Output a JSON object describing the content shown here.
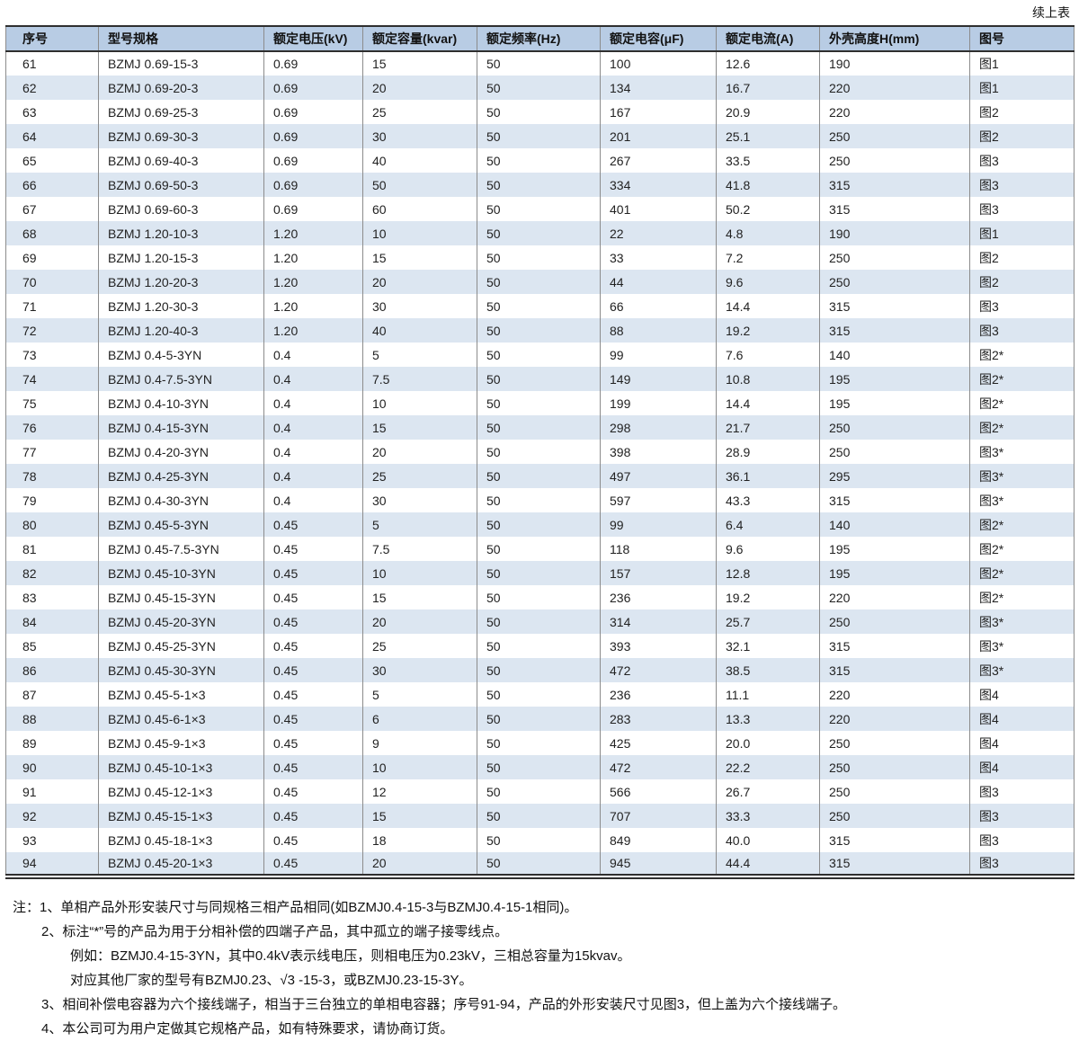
{
  "page": {
    "continuation_label": "续上表"
  },
  "colors": {
    "header_bg": "#b8cce4",
    "stripe_bg": "#dce6f1",
    "rule_dark": "#2f2f2f",
    "rule_gray": "#8c8c8c"
  },
  "table": {
    "columns": [
      "序号",
      "型号规格",
      "额定电压(kV)",
      "额定容量(kvar)",
      "额定频率(Hz)",
      "额定电容(μF)",
      "额定电流(A)",
      "外壳高度H(mm)",
      "图号"
    ],
    "rows": [
      [
        "61",
        "BZMJ 0.69-15-3",
        "0.69",
        "15",
        "50",
        "100",
        "12.6",
        "190",
        "图1"
      ],
      [
        "62",
        "BZMJ 0.69-20-3",
        "0.69",
        "20",
        "50",
        "134",
        "16.7",
        "220",
        "图1"
      ],
      [
        "63",
        "BZMJ 0.69-25-3",
        "0.69",
        "25",
        "50",
        "167",
        "20.9",
        "220",
        "图2"
      ],
      [
        "64",
        "BZMJ 0.69-30-3",
        "0.69",
        "30",
        "50",
        "201",
        "25.1",
        "250",
        "图2"
      ],
      [
        "65",
        "BZMJ 0.69-40-3",
        "0.69",
        "40",
        "50",
        "267",
        "33.5",
        "250",
        "图3"
      ],
      [
        "66",
        "BZMJ 0.69-50-3",
        "0.69",
        "50",
        "50",
        "334",
        "41.8",
        "315",
        "图3"
      ],
      [
        "67",
        "BZMJ 0.69-60-3",
        "0.69",
        "60",
        "50",
        "401",
        "50.2",
        "315",
        "图3"
      ],
      [
        "68",
        "BZMJ 1.20-10-3",
        "1.20",
        "10",
        "50",
        "22",
        "4.8",
        "190",
        "图1"
      ],
      [
        "69",
        "BZMJ 1.20-15-3",
        "1.20",
        "15",
        "50",
        "33",
        "7.2",
        "250",
        "图2"
      ],
      [
        "70",
        "BZMJ 1.20-20-3",
        "1.20",
        "20",
        "50",
        "44",
        "9.6",
        "250",
        "图2"
      ],
      [
        "71",
        "BZMJ 1.20-30-3",
        "1.20",
        "30",
        "50",
        "66",
        "14.4",
        "315",
        "图3"
      ],
      [
        "72",
        "BZMJ 1.20-40-3",
        "1.20",
        "40",
        "50",
        "88",
        "19.2",
        "315",
        "图3"
      ],
      [
        "73",
        "BZMJ 0.4-5-3YN",
        "0.4",
        "5",
        "50",
        "99",
        "7.6",
        "140",
        "图2*"
      ],
      [
        "74",
        "BZMJ 0.4-7.5-3YN",
        "0.4",
        "7.5",
        "50",
        "149",
        "10.8",
        "195",
        "图2*"
      ],
      [
        "75",
        "BZMJ 0.4-10-3YN",
        "0.4",
        "10",
        "50",
        "199",
        "14.4",
        "195",
        "图2*"
      ],
      [
        "76",
        "BZMJ 0.4-15-3YN",
        "0.4",
        "15",
        "50",
        "298",
        "21.7",
        "250",
        "图2*"
      ],
      [
        "77",
        "BZMJ 0.4-20-3YN",
        "0.4",
        "20",
        "50",
        "398",
        "28.9",
        "250",
        "图3*"
      ],
      [
        "78",
        "BZMJ 0.4-25-3YN",
        "0.4",
        "25",
        "50",
        "497",
        "36.1",
        "295",
        "图3*"
      ],
      [
        "79",
        "BZMJ 0.4-30-3YN",
        "0.4",
        "30",
        "50",
        "597",
        "43.3",
        "315",
        "图3*"
      ],
      [
        "80",
        "BZMJ 0.45-5-3YN",
        "0.45",
        "5",
        "50",
        "99",
        "6.4",
        "140",
        "图2*"
      ],
      [
        "81",
        "BZMJ 0.45-7.5-3YN",
        "0.45",
        "7.5",
        "50",
        "118",
        "9.6",
        "195",
        "图2*"
      ],
      [
        "82",
        "BZMJ 0.45-10-3YN",
        "0.45",
        "10",
        "50",
        "157",
        "12.8",
        "195",
        "图2*"
      ],
      [
        "83",
        "BZMJ 0.45-15-3YN",
        "0.45",
        "15",
        "50",
        "236",
        "19.2",
        "220",
        "图2*"
      ],
      [
        "84",
        "BZMJ 0.45-20-3YN",
        "0.45",
        "20",
        "50",
        "314",
        "25.7",
        "250",
        "图3*"
      ],
      [
        "85",
        "BZMJ 0.45-25-3YN",
        "0.45",
        "25",
        "50",
        "393",
        "32.1",
        "315",
        "图3*"
      ],
      [
        "86",
        "BZMJ 0.45-30-3YN",
        "0.45",
        "30",
        "50",
        "472",
        "38.5",
        "315",
        "图3*"
      ],
      [
        "87",
        "BZMJ 0.45-5-1×3",
        "0.45",
        "5",
        "50",
        "236",
        "11.1",
        "220",
        "图4"
      ],
      [
        "88",
        "BZMJ 0.45-6-1×3",
        "0.45",
        "6",
        "50",
        "283",
        "13.3",
        "220",
        "图4"
      ],
      [
        "89",
        "BZMJ 0.45-9-1×3",
        "0.45",
        "9",
        "50",
        "425",
        "20.0",
        "250",
        "图4"
      ],
      [
        "90",
        "BZMJ 0.45-10-1×3",
        "0.45",
        "10",
        "50",
        "472",
        "22.2",
        "250",
        "图4"
      ],
      [
        "91",
        "BZMJ 0.45-12-1×3",
        "0.45",
        "12",
        "50",
        "566",
        "26.7",
        "250",
        "图3"
      ],
      [
        "92",
        "BZMJ 0.45-15-1×3",
        "0.45",
        "15",
        "50",
        "707",
        "33.3",
        "250",
        "图3"
      ],
      [
        "93",
        "BZMJ 0.45-18-1×3",
        "0.45",
        "18",
        "50",
        "849",
        "40.0",
        "315",
        "图3"
      ],
      [
        "94",
        "BZMJ 0.45-20-1×3",
        "0.45",
        "20",
        "50",
        "945",
        "44.4",
        "315",
        "图3"
      ]
    ]
  },
  "notes": {
    "items": [
      {
        "text": "注：1、单相产品外形安装尺寸与同规格三相产品相同(如BZMJ0.4-15-3与BZMJ0.4-15-1相同)。",
        "level": 0
      },
      {
        "text": "2、标注“*”号的产品为用于分相补偿的四端子产品，其中孤立的端子接零线点。",
        "level": 1
      },
      {
        "text": "例如：BZMJ0.4-15-3YN，其中0.4kV表示线电压，则相电压为0.23kV，三相总容量为15kvav。",
        "level": 2
      },
      {
        "text": "对应其他厂家的型号有BZMJ0.23、√3 -15-3，或BZMJ0.23-15-3Y。",
        "level": 2
      },
      {
        "text": "3、相间补偿电容器为六个接线端子，相当于三台独立的单相电容器；序号91-94，产品的外形安装尺寸见图3，但上盖为六个接线端子。",
        "level": 1
      },
      {
        "text": "4、本公司可为用户定做其它规格产品，如有特殊要求，请协商订货。",
        "level": 1
      }
    ]
  }
}
